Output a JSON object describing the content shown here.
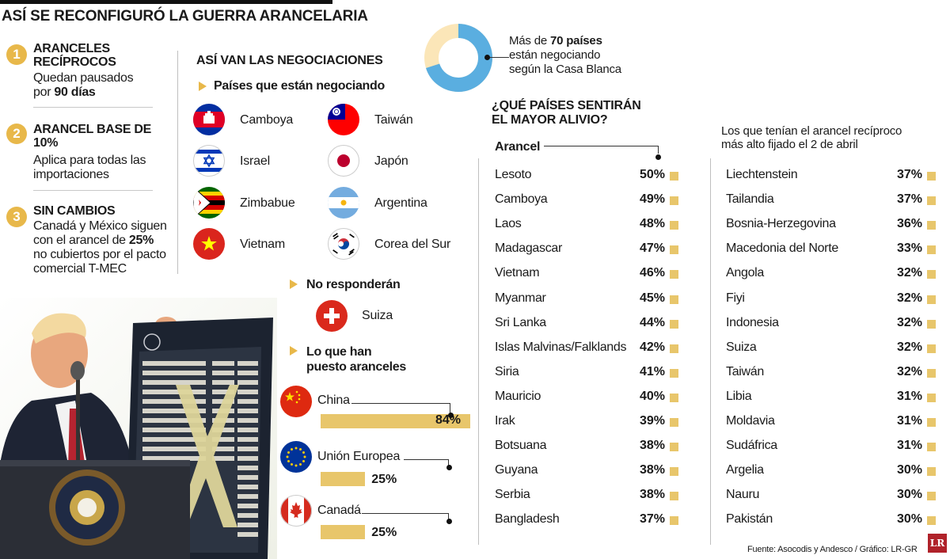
{
  "title": "ASÍ SE RECONFIGURÓ LA GUERRA ARANCELARIA",
  "steps": [
    {
      "num": "1",
      "title": "ARANCELES RECÍPROCOS",
      "text_pre": "Quedan pausados por ",
      "text_bold": "90 días",
      "text_post": ""
    },
    {
      "num": "2",
      "title": "ARANCEL BASE DE 10%",
      "text_pre": "Aplica para todas las importaciones",
      "text_bold": "",
      "text_post": ""
    },
    {
      "num": "3",
      "title": "SIN CAMBIOS",
      "text_pre": "Canadá y México siguen con el arancel de ",
      "text_bold": "25%",
      "text_post": " no cubiertos por el pacto comercial T-MEC"
    }
  ],
  "negotiations": {
    "title": "ASÍ VAN LAS NEGOCIACIONES",
    "negotiating_label": "Países que están negociando",
    "countries": [
      {
        "name": "Camboya",
        "flag": "cambodia-flag-icon"
      },
      {
        "name": "Taiwán",
        "flag": "taiwan-flag-icon"
      },
      {
        "name": "Israel",
        "flag": "israel-flag-icon"
      },
      {
        "name": "Japón",
        "flag": "japan-flag-icon"
      },
      {
        "name": "Zimbabue",
        "flag": "zimbabwe-flag-icon"
      },
      {
        "name": "Argentina",
        "flag": "argentina-flag-icon"
      },
      {
        "name": "Vietnam",
        "flag": "vietnam-flag-icon"
      },
      {
        "name": "Corea del Sur",
        "flag": "south-korea-flag-icon"
      }
    ],
    "no_response_label": "No responderán",
    "no_response_country": "Suiza",
    "tariffs_label_line1": "Lo que han",
    "tariffs_label_line2": "puesto aranceles"
  },
  "donut": {
    "text_pre": "Más de ",
    "text_bold": "70 países",
    "text_line2": "están negociando",
    "text_line3": "según la Casa Blanca",
    "fraction": 0.7,
    "color_main": "#5aaee0",
    "color_rest": "#fbe6b8"
  },
  "relief_title_line1": "¿QUÉ PAÍSES SENTIRÁN",
  "relief_title_line2": "EL MAYOR ALIVIO?",
  "arancel_label": "Arancel",
  "right_header_line1": "Los que tenían el arancel recíproco",
  "right_header_line2": "más alto fijado el 2 de abril",
  "source": "Fuente: Asocodis y Andesco / Gráfico: LR-GR",
  "logo": "LR",
  "colors": {
    "accent": "#e8b84a",
    "bar": "#e8c66b"
  },
  "chart_data": [
    {
      "type": "bar",
      "orientation": "horizontal",
      "categories": [
        "China",
        "Unión Europea",
        "Canadá"
      ],
      "values": [
        84,
        25,
        25
      ],
      "value_labels": [
        "84%",
        "25%",
        "25%"
      ],
      "unit": "%",
      "xlim": [
        0,
        84
      ]
    },
    {
      "type": "table",
      "columns": [
        "",
        "Arancel"
      ],
      "rows": [
        [
          "Lesoto",
          "50%"
        ],
        [
          "Camboya",
          "49%"
        ],
        [
          "Laos",
          "48%"
        ],
        [
          "Madagascar",
          "47%"
        ],
        [
          "Vietnam",
          "46%"
        ],
        [
          "Myanmar",
          "45%"
        ],
        [
          "Sri Lanka",
          "44%"
        ],
        [
          "Islas Malvinas/Falklands",
          "42%"
        ],
        [
          "Siria",
          "41%"
        ],
        [
          "Mauricio",
          "40%"
        ],
        [
          "Irak",
          "39%"
        ],
        [
          "Botsuana",
          "38%"
        ],
        [
          "Guyana",
          "38%"
        ],
        [
          "Serbia",
          "38%"
        ],
        [
          "Bangladesh",
          "37%"
        ]
      ]
    },
    {
      "type": "table",
      "columns": [
        "",
        ""
      ],
      "rows": [
        [
          "Liechtenstein",
          "37%"
        ],
        [
          "Tailandia",
          "37%"
        ],
        [
          "Bosnia-Herzegovina",
          "36%"
        ],
        [
          "Macedonia del Norte",
          "33%"
        ],
        [
          "Angola",
          "32%"
        ],
        [
          "Fiyi",
          "32%"
        ],
        [
          "Indonesia",
          "32%"
        ],
        [
          "Suiza",
          "32%"
        ],
        [
          "Taiwán",
          "32%"
        ],
        [
          "Libia",
          "31%"
        ],
        [
          "Moldavia",
          "31%"
        ],
        [
          "Sudáfrica",
          "31%"
        ],
        [
          "Argelia",
          "30%"
        ],
        [
          "Nauru",
          "30%"
        ],
        [
          "Pakistán",
          "30%"
        ]
      ]
    }
  ]
}
